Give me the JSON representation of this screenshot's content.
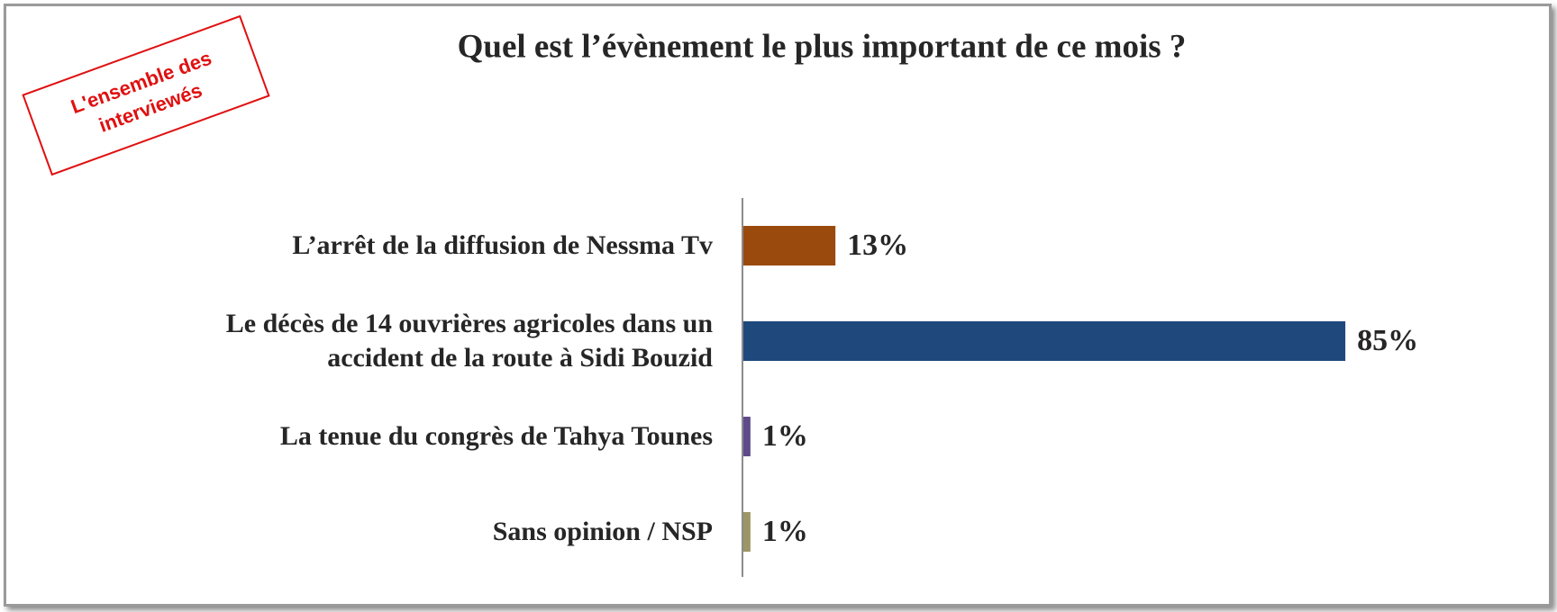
{
  "chart_data": {
    "type": "barh",
    "title": "Quel est l’évènement le plus important de ce mois ?",
    "annotation": "L'ensemble des interviewés",
    "categories": [
      "L’arrêt de la diffusion de Nessma Tv",
      "Le décès de 14 ouvrières agricoles dans un accident de la route à Sidi Bouzid",
      "La tenue du congrès de Tahya Tounes",
      "Sans opinion / NSP"
    ],
    "values": [
      13,
      85,
      1,
      1
    ],
    "value_labels": [
      "13%",
      "85%",
      "1%",
      "1%"
    ],
    "colors": [
      "#9a4a0c",
      "#1f497d",
      "#5f4b8b",
      "#9c9565"
    ]
  }
}
